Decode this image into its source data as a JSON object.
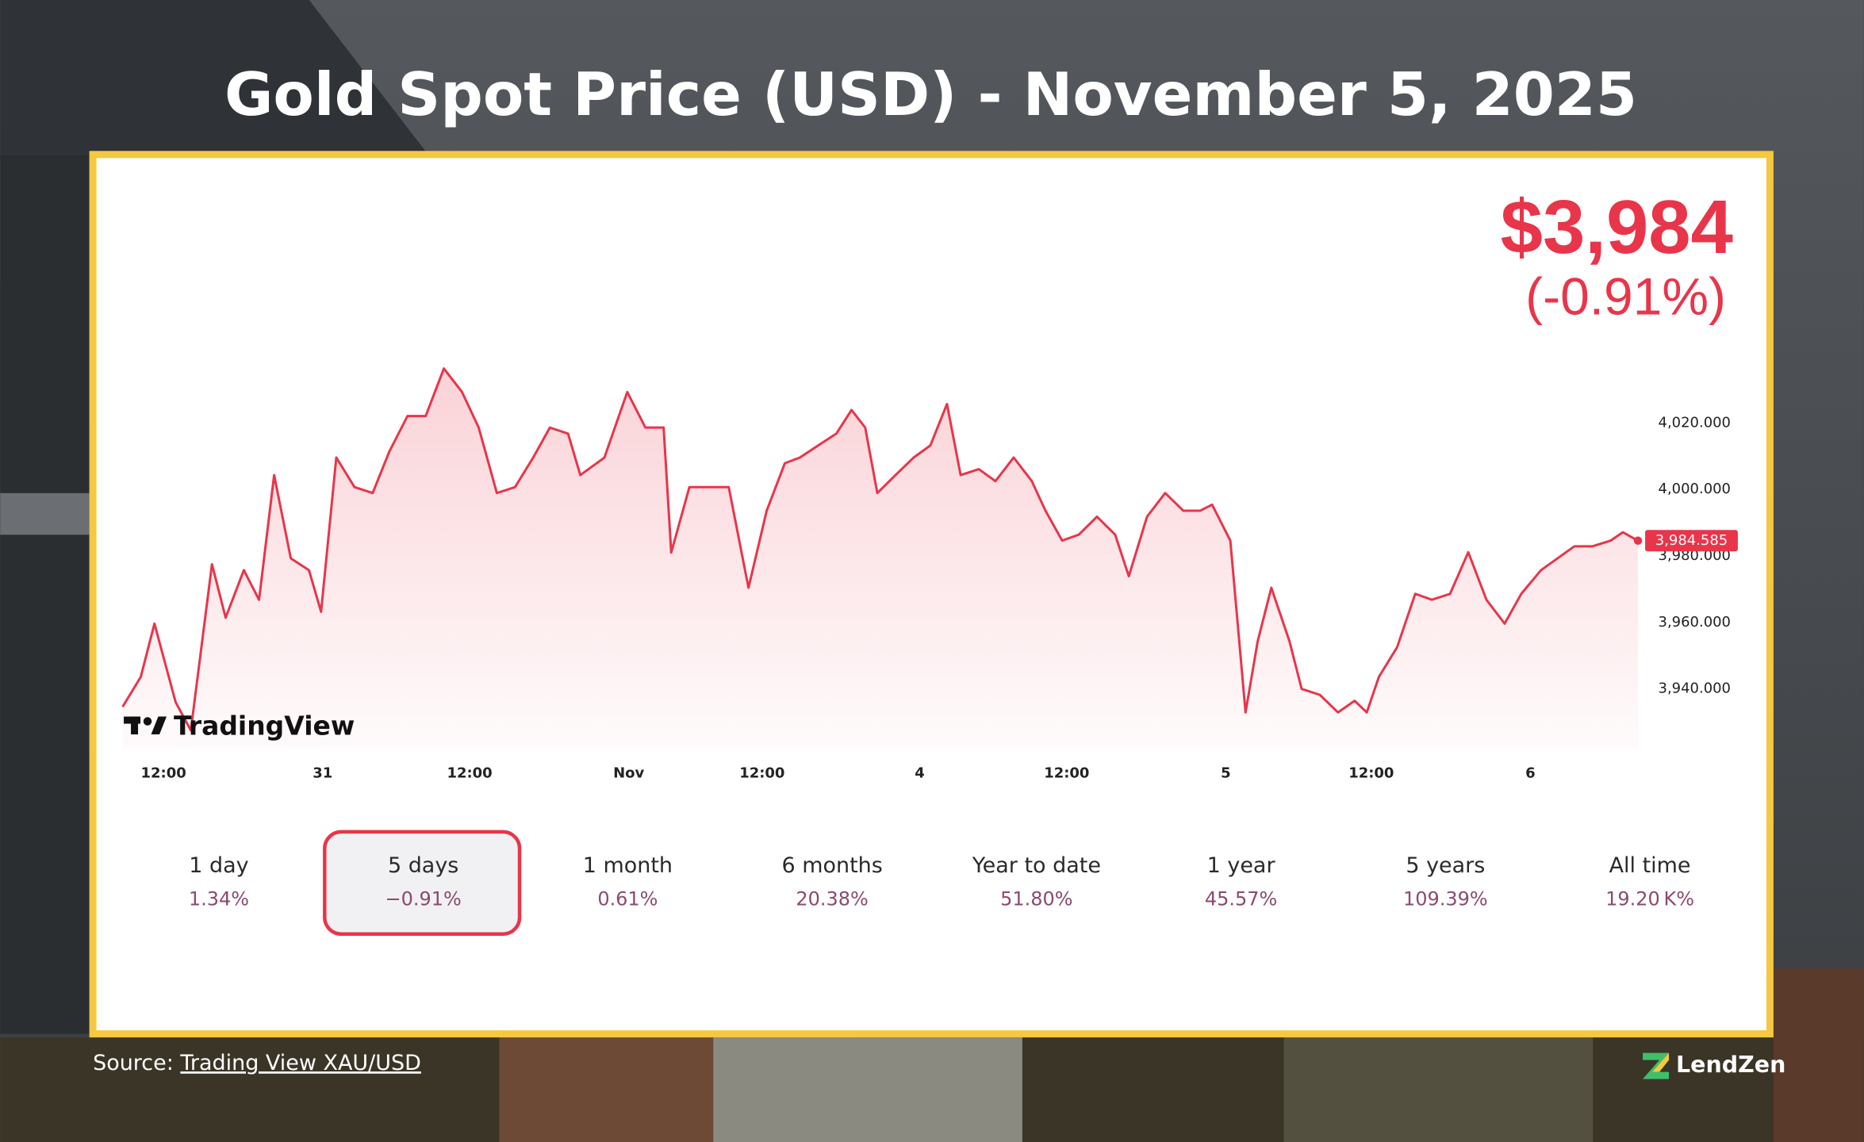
{
  "title": "Gold Spot Price (USD) - November 5, 2025",
  "price": "$3,984",
  "price_change": "(-0.91%)",
  "watermark": "TradingView",
  "chart_data": {
    "type": "line",
    "color": "#e8354a",
    "x": [
      0,
      1.2,
      2.1,
      3.5,
      4.5,
      5.9,
      6.8,
      8.0,
      9.0,
      10.0,
      11.1,
      12.3,
      13.1,
      14.1,
      15.3,
      16.5,
      17.6,
      18.8,
      20.0,
      21.2,
      22.4,
      23.5,
      24.7,
      25.9,
      27.1,
      28.2,
      29.4,
      30.2,
      31.8,
      33.3,
      34.5,
      35.7,
      36.2,
      37.4,
      38.6,
      40.0,
      41.3,
      42.5,
      43.7,
      44.7,
      45.9,
      47.1,
      48.1,
      49.0,
      49.8,
      51.0,
      52.2,
      53.3,
      54.4,
      55.3,
      56.5,
      57.6,
      58.8,
      60.0,
      60.9,
      62.0,
      63.1,
      64.3,
      65.5,
      66.4,
      67.6,
      68.8,
      70.0,
      71.1,
      71.9,
      73.1,
      74.1,
      74.9,
      75.8,
      77.0,
      77.8,
      79.0,
      80.2,
      81.3,
      82.1,
      82.9,
      84.1,
      85.3,
      86.4,
      87.6,
      88.8,
      90.0,
      91.2,
      92.3,
      93.6,
      94.7,
      95.8,
      97.0,
      98.2,
      99.0,
      100
    ],
    "values": [
      3934.6,
      3943.6,
      3959.6,
      3936,
      3927.5,
      3977.5,
      3961.4,
      3975.7,
      3966.8,
      4004.3,
      3979.3,
      3975.7,
      3963.2,
      4009.6,
      4000.7,
      3998.9,
      4011.4,
      4022.1,
      4022.1,
      4036.4,
      4029.3,
      4018.6,
      3998.9,
      4000.7,
      4009.6,
      4018.6,
      4016.8,
      4004.3,
      4009.6,
      4029.3,
      4018.6,
      4018.6,
      3981,
      4000.7,
      4000.7,
      4000.7,
      3970.4,
      3993.6,
      4007.9,
      4009.6,
      4013.2,
      4016.8,
      4023.9,
      4018.6,
      3998.9,
      4004.3,
      4009.6,
      4013.2,
      4025.7,
      4004.3,
      4006.1,
      4002.5,
      4009.6,
      4002.5,
      3993.6,
      3984.6,
      3986.4,
      3991.8,
      3986.4,
      3973.9,
      3991.8,
      3998.9,
      3993.6,
      3993.6,
      3995.4,
      3984.6,
      3932.9,
      3954.3,
      3970.4,
      3954.3,
      3940,
      3938.2,
      3932.9,
      3936.4,
      3932.9,
      3943.6,
      3952.5,
      3968.6,
      3966.8,
      3968.6,
      3981.1,
      3966.8,
      3959.6,
      3968.6,
      3975.7,
      3979.3,
      3982.9,
      3982.9,
      3984.6,
      3987.1,
      3984.585
    ],
    "xlim": [
      0,
      100
    ],
    "xticks": [
      {
        "value": 2.7,
        "label": "12:00"
      },
      {
        "value": 13.2,
        "label": "31"
      },
      {
        "value": 22.9,
        "label": "12:00"
      },
      {
        "value": 33.4,
        "label": "Nov"
      },
      {
        "value": 42.2,
        "label": "12:00"
      },
      {
        "value": 52.6,
        "label": "4"
      },
      {
        "value": 62.3,
        "label": "12:00"
      },
      {
        "value": 72.8,
        "label": "5"
      },
      {
        "value": 82.4,
        "label": "12:00"
      },
      {
        "value": 92.9,
        "label": "6"
      }
    ],
    "ylim": [
      3922,
      4040
    ],
    "yticks": [
      {
        "value": 3940,
        "label": "3,940.000"
      },
      {
        "value": 3960,
        "label": "3,960.000"
      },
      {
        "value": 3980,
        "label": "3,980.000"
      },
      {
        "value": 4000,
        "label": "4,000.000"
      },
      {
        "value": 4020,
        "label": "4,020.000"
      }
    ],
    "current": {
      "value": 3984.585,
      "label": "3,984.585"
    }
  },
  "ranges": {
    "selected": 1,
    "items": [
      {
        "label": "1 day",
        "change": "1.34%"
      },
      {
        "label": "5 days",
        "change": "−0.91%"
      },
      {
        "label": "1 month",
        "change": "0.61%"
      },
      {
        "label": "6 months",
        "change": "20.38%"
      },
      {
        "label": "Year to date",
        "change": "51.80%"
      },
      {
        "label": "1 year",
        "change": "45.57%"
      },
      {
        "label": "5 years",
        "change": "109.39%"
      },
      {
        "label": "All time",
        "change": "19.20 K%"
      }
    ]
  },
  "source": {
    "label": "Source: ",
    "link": "Trading View XAU/USD"
  },
  "brand": "LendZen"
}
